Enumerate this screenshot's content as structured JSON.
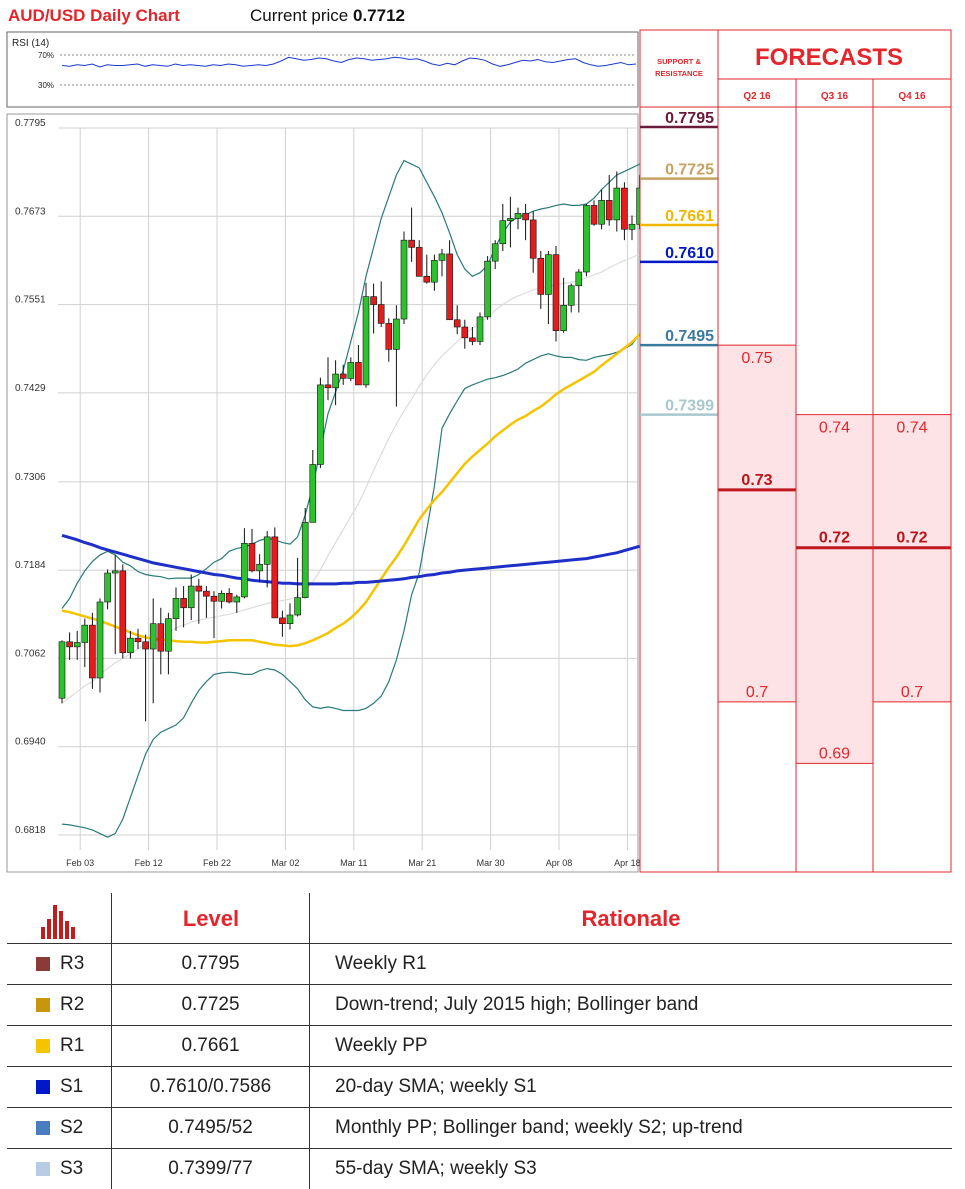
{
  "header": {
    "title": "AUD/USD Daily Chart",
    "price_label": "Current price",
    "price_value": "0.7712"
  },
  "rsi": {
    "label": "RSI (14)",
    "level_high": "70%",
    "level_low": "30%",
    "values": [
      56,
      55,
      57,
      56,
      58,
      54,
      57,
      56,
      56,
      57,
      58,
      55,
      57,
      56,
      55,
      58,
      56,
      57,
      56,
      55,
      57,
      56,
      58,
      57,
      55,
      56,
      57,
      56,
      58,
      62,
      67,
      65,
      63,
      64,
      66,
      65,
      62,
      60,
      64,
      66,
      65,
      63,
      64,
      65,
      67,
      66,
      64,
      65,
      62,
      58,
      56,
      59,
      57,
      62,
      66,
      65,
      63,
      58,
      55,
      57,
      60,
      63,
      62,
      64,
      61,
      60,
      62,
      64,
      65,
      60,
      57,
      55,
      56,
      58,
      60,
      57,
      58
    ]
  },
  "chart_data": {
    "type": "candlestick",
    "title": "AUD/USD Daily Chart",
    "xlabel": "",
    "ylabel": "",
    "ylim": [
      0.6818,
      0.7795
    ],
    "y_ticks": [
      "0.7795",
      "0.7673",
      "0.7551",
      "0.7429",
      "0.7306",
      "0.7184",
      "0.7062",
      "0.6940",
      "0.6818"
    ],
    "x_ticks": [
      "Feb 03",
      "Feb 12",
      "Feb 22",
      "Mar 02",
      "Mar 11",
      "Mar 21",
      "Mar 30",
      "Apr 08",
      "Apr 18"
    ],
    "candles_ohlc": [
      [
        0.7007,
        0.7087,
        0.7,
        0.7085
      ],
      [
        0.7085,
        0.7098,
        0.706,
        0.7078
      ],
      [
        0.7078,
        0.71,
        0.706,
        0.7084
      ],
      [
        0.7084,
        0.7117,
        0.705,
        0.7108
      ],
      [
        0.7108,
        0.7125,
        0.702,
        0.7035
      ],
      [
        0.7035,
        0.7145,
        0.7015,
        0.714
      ],
      [
        0.714,
        0.7185,
        0.713,
        0.718
      ],
      [
        0.718,
        0.7205,
        0.7068,
        0.7183
      ],
      [
        0.7183,
        0.7192,
        0.7062,
        0.707
      ],
      [
        0.707,
        0.71,
        0.7062,
        0.709
      ],
      [
        0.709,
        0.7103,
        0.7075,
        0.7085
      ],
      [
        0.7085,
        0.7095,
        0.6975,
        0.7075
      ],
      [
        0.7075,
        0.7145,
        0.7,
        0.711
      ],
      [
        0.711,
        0.7132,
        0.704,
        0.7072
      ],
      [
        0.7072,
        0.7125,
        0.704,
        0.7117
      ],
      [
        0.7117,
        0.716,
        0.71,
        0.7145
      ],
      [
        0.7145,
        0.7162,
        0.7105,
        0.7132
      ],
      [
        0.7132,
        0.7178,
        0.7115,
        0.7162
      ],
      [
        0.7162,
        0.7172,
        0.711,
        0.7155
      ],
      [
        0.7155,
        0.7162,
        0.7118,
        0.7148
      ],
      [
        0.7148,
        0.7155,
        0.709,
        0.7141
      ],
      [
        0.7141,
        0.7156,
        0.7131,
        0.7152
      ],
      [
        0.7152,
        0.7159,
        0.7138,
        0.714
      ],
      [
        0.714,
        0.715,
        0.7125,
        0.7147
      ],
      [
        0.7147,
        0.7242,
        0.7145,
        0.7221
      ],
      [
        0.7221,
        0.7241,
        0.7181,
        0.7183
      ],
      [
        0.7183,
        0.7206,
        0.7167,
        0.7192
      ],
      [
        0.7192,
        0.7238,
        0.716,
        0.723
      ],
      [
        0.723,
        0.7243,
        0.712,
        0.7118
      ],
      [
        0.7118,
        0.7128,
        0.7092,
        0.711
      ],
      [
        0.711,
        0.7138,
        0.7102,
        0.7122
      ],
      [
        0.7122,
        0.7201,
        0.712,
        0.7146
      ],
      [
        0.7146,
        0.727,
        0.7145,
        0.725
      ],
      [
        0.725,
        0.735,
        0.725,
        0.733
      ],
      [
        0.733,
        0.745,
        0.7325,
        0.744
      ],
      [
        0.744,
        0.7478,
        0.7419,
        0.7436
      ],
      [
        0.7436,
        0.7474,
        0.7412,
        0.7455
      ],
      [
        0.7455,
        0.7468,
        0.744,
        0.7449
      ],
      [
        0.7449,
        0.7478,
        0.7445,
        0.7471
      ],
      [
        0.7471,
        0.7495,
        0.7441,
        0.744
      ],
      [
        0.744,
        0.7581,
        0.7436,
        0.7562
      ],
      [
        0.7562,
        0.758,
        0.7511,
        0.7551
      ],
      [
        0.7551,
        0.7583,
        0.752,
        0.7525
      ],
      [
        0.7525,
        0.7532,
        0.7472,
        0.7489
      ],
      [
        0.7489,
        0.755,
        0.741,
        0.7531
      ],
      [
        0.7531,
        0.7652,
        0.7524,
        0.764
      ],
      [
        0.764,
        0.7685,
        0.761,
        0.763
      ],
      [
        0.763,
        0.764,
        0.759,
        0.759
      ],
      [
        0.759,
        0.762,
        0.758,
        0.7582
      ],
      [
        0.7582,
        0.762,
        0.757,
        0.7612
      ],
      [
        0.7612,
        0.7628,
        0.759,
        0.7621
      ],
      [
        0.7621,
        0.764,
        0.7535,
        0.753
      ],
      [
        0.753,
        0.755,
        0.751,
        0.752
      ],
      [
        0.752,
        0.753,
        0.749,
        0.7505
      ],
      [
        0.7505,
        0.752,
        0.7495,
        0.75
      ],
      [
        0.75,
        0.754,
        0.7495,
        0.7534
      ],
      [
        0.7534,
        0.7618,
        0.753,
        0.7611
      ],
      [
        0.7611,
        0.764,
        0.76,
        0.7635
      ],
      [
        0.7635,
        0.769,
        0.7625,
        0.7667
      ],
      [
        0.7667,
        0.77,
        0.763,
        0.767
      ],
      [
        0.767,
        0.7685,
        0.7655,
        0.7677
      ],
      [
        0.7677,
        0.769,
        0.764,
        0.7668
      ],
      [
        0.7668,
        0.768,
        0.7595,
        0.7615
      ],
      [
        0.7615,
        0.7625,
        0.7545,
        0.7565
      ],
      [
        0.7565,
        0.7625,
        0.7524,
        0.762
      ],
      [
        0.762,
        0.7632,
        0.75,
        0.7515
      ],
      [
        0.7515,
        0.7588,
        0.7512,
        0.755
      ],
      [
        0.755,
        0.758,
        0.754,
        0.7577
      ],
      [
        0.7577,
        0.76,
        0.754,
        0.7596
      ],
      [
        0.7596,
        0.769,
        0.759,
        0.7688
      ],
      [
        0.7688,
        0.7695,
        0.766,
        0.7662
      ],
      [
        0.7662,
        0.771,
        0.7655,
        0.7695
      ],
      [
        0.7695,
        0.773,
        0.766,
        0.7668
      ],
      [
        0.7668,
        0.7735,
        0.7652,
        0.7712
      ],
      [
        0.7712,
        0.772,
        0.764,
        0.7655
      ],
      [
        0.7655,
        0.7674,
        0.764,
        0.7662
      ],
      [
        0.7662,
        0.773,
        0.7655,
        0.7712
      ]
    ],
    "sma200": [
      0.7232,
      0.7229,
      0.7226,
      0.7222,
      0.7219,
      0.7215,
      0.7212,
      0.7209,
      0.7206,
      0.7203,
      0.72,
      0.7197,
      0.7194,
      0.7192,
      0.719,
      0.7188,
      0.7186,
      0.7184,
      0.7182,
      0.718,
      0.7178,
      0.7177,
      0.7175,
      0.7173,
      0.7172,
      0.717,
      0.7169,
      0.7168,
      0.7167,
      0.7166,
      0.7166,
      0.7165,
      0.7165,
      0.7165,
      0.7165,
      0.7165,
      0.7165,
      0.7166,
      0.7166,
      0.7167,
      0.7167,
      0.7168,
      0.7169,
      0.717,
      0.7171,
      0.7172,
      0.7174,
      0.7175,
      0.7177,
      0.7178,
      0.718,
      0.7181,
      0.7183,
      0.7184,
      0.7185,
      0.7186,
      0.7187,
      0.7188,
      0.7189,
      0.719,
      0.7191,
      0.7192,
      0.7193,
      0.7194,
      0.7195,
      0.7196,
      0.7197,
      0.7198,
      0.7199,
      0.72,
      0.7202,
      0.7204,
      0.7206,
      0.7208,
      0.7211,
      0.7214,
      0.7217
    ],
    "sma55": [
      0.7128,
      0.7126,
      0.7123,
      0.712,
      0.7117,
      0.7114,
      0.711,
      0.7106,
      0.7102,
      0.7098,
      0.7094,
      0.7091,
      0.7089,
      0.7088,
      0.7087,
      0.7086,
      0.7085,
      0.7085,
      0.7084,
      0.7084,
      0.7085,
      0.7086,
      0.7087,
      0.7087,
      0.7087,
      0.7087,
      0.7085,
      0.7083,
      0.7081,
      0.708,
      0.7079,
      0.708,
      0.7083,
      0.7087,
      0.7092,
      0.7097,
      0.7104,
      0.711,
      0.7118,
      0.7128,
      0.714,
      0.7156,
      0.7172,
      0.7188,
      0.7202,
      0.7218,
      0.7236,
      0.7254,
      0.7268,
      0.7281,
      0.7292,
      0.7305,
      0.7318,
      0.7331,
      0.7341,
      0.735,
      0.7359,
      0.7369,
      0.7377,
      0.7385,
      0.7392,
      0.7397,
      0.7404,
      0.741,
      0.7418,
      0.7427,
      0.7434,
      0.744,
      0.7446,
      0.7452,
      0.7458,
      0.7467,
      0.7475,
      0.7483,
      0.7491,
      0.7499,
      0.751
    ],
    "sma20": [
      0.7,
      0.7008,
      0.7016,
      0.7024,
      0.703,
      0.704,
      0.7048,
      0.7056,
      0.7062,
      0.7068,
      0.7075,
      0.7082,
      0.7087,
      0.7093,
      0.7098,
      0.7104,
      0.7108,
      0.7112,
      0.7115,
      0.7117,
      0.7119,
      0.7121,
      0.7123,
      0.7126,
      0.7129,
      0.7132,
      0.7135,
      0.7138,
      0.714,
      0.7142,
      0.7144,
      0.7148,
      0.7156,
      0.7168,
      0.7184,
      0.7204,
      0.7222,
      0.724,
      0.7258,
      0.7276,
      0.7298,
      0.7322,
      0.7344,
      0.7366,
      0.7386,
      0.7404,
      0.742,
      0.7438,
      0.7454,
      0.7468,
      0.748,
      0.749,
      0.75,
      0.751,
      0.7518,
      0.7526,
      0.7534,
      0.7543,
      0.7551,
      0.7558,
      0.7563,
      0.7567,
      0.7571,
      0.7574,
      0.7577,
      0.7578,
      0.758,
      0.7582,
      0.7584,
      0.7588,
      0.7592,
      0.7596,
      0.7602,
      0.7607,
      0.7612,
      0.7616,
      0.7621
    ],
    "boll_upper": [
      0.7131,
      0.7145,
      0.7166,
      0.7183,
      0.7196,
      0.7205,
      0.721,
      0.7205,
      0.7195,
      0.719,
      0.7182,
      0.7178,
      0.7176,
      0.7175,
      0.7172,
      0.7173,
      0.7173,
      0.7173,
      0.7178,
      0.7186,
      0.7195,
      0.72,
      0.721,
      0.7214,
      0.7216,
      0.722,
      0.7225,
      0.7228,
      0.7226,
      0.7222,
      0.722,
      0.723,
      0.726,
      0.73,
      0.735,
      0.74,
      0.743,
      0.746,
      0.75,
      0.754,
      0.759,
      0.763,
      0.767,
      0.77,
      0.773,
      0.775,
      0.7745,
      0.774,
      0.772,
      0.77,
      0.7678,
      0.765,
      0.762,
      0.76,
      0.759,
      0.7595,
      0.7605,
      0.763,
      0.765,
      0.7665,
      0.7672,
      0.7675,
      0.768,
      0.7683,
      0.7685,
      0.7688,
      0.769,
      0.7688,
      0.7688,
      0.769,
      0.7698,
      0.771,
      0.772,
      0.773,
      0.7735,
      0.774,
      0.7745
    ],
    "boll_lower": [
      0.6833,
      0.6832,
      0.683,
      0.6828,
      0.6825,
      0.682,
      0.6815,
      0.682,
      0.684,
      0.687,
      0.69,
      0.693,
      0.695,
      0.696,
      0.6965,
      0.697,
      0.698,
      0.7,
      0.7018,
      0.703,
      0.704,
      0.7042,
      0.7043,
      0.7042,
      0.704,
      0.704,
      0.7045,
      0.7048,
      0.7046,
      0.704,
      0.703,
      0.702,
      0.7005,
      0.6995,
      0.6993,
      0.6995,
      0.6993,
      0.699,
      0.699,
      0.699,
      0.6993,
      0.7,
      0.701,
      0.703,
      0.706,
      0.71,
      0.715,
      0.718,
      0.724,
      0.73,
      0.738,
      0.74,
      0.7418,
      0.7435,
      0.744,
      0.7444,
      0.7448,
      0.745,
      0.7453,
      0.7457,
      0.7462,
      0.747,
      0.7475,
      0.748,
      0.7483,
      0.748,
      0.7478,
      0.7478,
      0.7475,
      0.7474,
      0.7478,
      0.748,
      0.7482,
      0.7485,
      0.749,
      0.7496,
      0.751
    ]
  },
  "support_resistance": {
    "header": "SUPPORT & RESISTANCE",
    "levels": [
      {
        "value": "0.7795",
        "price": 0.7795,
        "color": "#6a1b3a"
      },
      {
        "value": "0.7725",
        "price": 0.7725,
        "color": "#c8a060"
      },
      {
        "value": "0.7661",
        "price": 0.7661,
        "color": "#f2b800"
      },
      {
        "value": "0.7610",
        "price": 0.761,
        "color": "#0018c8"
      },
      {
        "value": "0.7495",
        "price": 0.7495,
        "color": "#3a7aa0"
      },
      {
        "value": "0.7399",
        "price": 0.7399,
        "color": "#a8c8d0"
      }
    ]
  },
  "forecasts": {
    "title": "FORECASTS",
    "quarters": [
      {
        "label": "Q2 16",
        "high": "0.75",
        "mid": "0.73",
        "low": "0.7",
        "high_p": 0.7495,
        "mid_p": 0.7295,
        "low_p": 0.7002
      },
      {
        "label": "Q3 16",
        "high": "0.74",
        "mid": "0.72",
        "low": "0.69",
        "high_p": 0.7399,
        "mid_p": 0.7215,
        "low_p": 0.6917
      },
      {
        "label": "Q4 16",
        "high": "0.74",
        "mid": "0.72",
        "low": "0.7",
        "high_p": 0.7399,
        "mid_p": 0.7215,
        "low_p": 0.7002
      }
    ]
  },
  "table": {
    "col_level": "Level",
    "col_rationale": "Rationale",
    "rows": [
      {
        "name": "R3",
        "level": "0.7795",
        "rationale": "Weekly R1",
        "color": "#8b3a3a"
      },
      {
        "name": "R2",
        "level": "0.7725",
        "rationale": "Down-trend; July 2015 high; Bollinger band",
        "color": "#c8960c"
      },
      {
        "name": "R1",
        "level": "0.7661",
        "rationale": "Weekly PP",
        "color": "#f5c400"
      },
      {
        "name": "S1",
        "level": "0.7610/0.7586",
        "rationale": "20-day SMA; weekly S1",
        "color": "#0018c8"
      },
      {
        "name": "S2",
        "level": "0.7495/52",
        "rationale": "Monthly PP; Bollinger band; weekly S2; up-trend",
        "color": "#4a7cc0"
      },
      {
        "name": "S3",
        "level": "0.7399/77",
        "rationale": "55-day SMA; weekly S3",
        "color": "#b8cce4"
      }
    ]
  }
}
